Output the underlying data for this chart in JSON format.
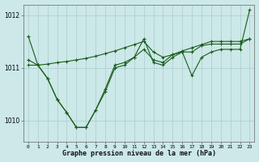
{
  "bg_color": "#cce8e8",
  "grid_color": "#aacccc",
  "line_color": "#1a5c1a",
  "xlabel": "Graphe pression niveau de la mer (hPa)",
  "ylim": [
    1009.6,
    1012.2
  ],
  "xlim": [
    -0.5,
    23.5
  ],
  "yticks": [
    1010,
    1011,
    1012
  ],
  "xticks": [
    0,
    1,
    2,
    3,
    4,
    5,
    6,
    7,
    8,
    9,
    10,
    11,
    12,
    13,
    14,
    15,
    16,
    17,
    18,
    19,
    20,
    21,
    22,
    23
  ],
  "series_smooth": [
    1011.05,
    1011.05,
    1011.07,
    1011.1,
    1011.12,
    1011.15,
    1011.18,
    1011.22,
    1011.27,
    1011.32,
    1011.38,
    1011.44,
    1011.5,
    1011.3,
    1011.2,
    1011.25,
    1011.32,
    1011.38,
    1011.44,
    1011.5,
    1011.5,
    1011.5,
    1011.5,
    1011.55
  ],
  "series_dip": [
    1011.6,
    1011.05,
    1010.8,
    1010.4,
    1010.15,
    1009.87,
    1009.87,
    1010.2,
    1010.55,
    1011.0,
    1011.05,
    1011.2,
    1011.55,
    1011.1,
    1011.05,
    1011.2,
    1011.3,
    1010.85,
    1011.2,
    1011.3,
    1011.35,
    1011.35,
    1011.35,
    1012.1
  ],
  "series_jagged": [
    1011.15,
    1011.05,
    1010.8,
    1010.4,
    1010.15,
    1009.87,
    1009.87,
    1010.2,
    1010.6,
    1011.05,
    1011.1,
    1011.2,
    1011.35,
    1011.15,
    1011.1,
    1011.25,
    1011.3,
    1011.3,
    1011.42,
    1011.45,
    1011.45,
    1011.45,
    1011.45,
    1011.55
  ]
}
